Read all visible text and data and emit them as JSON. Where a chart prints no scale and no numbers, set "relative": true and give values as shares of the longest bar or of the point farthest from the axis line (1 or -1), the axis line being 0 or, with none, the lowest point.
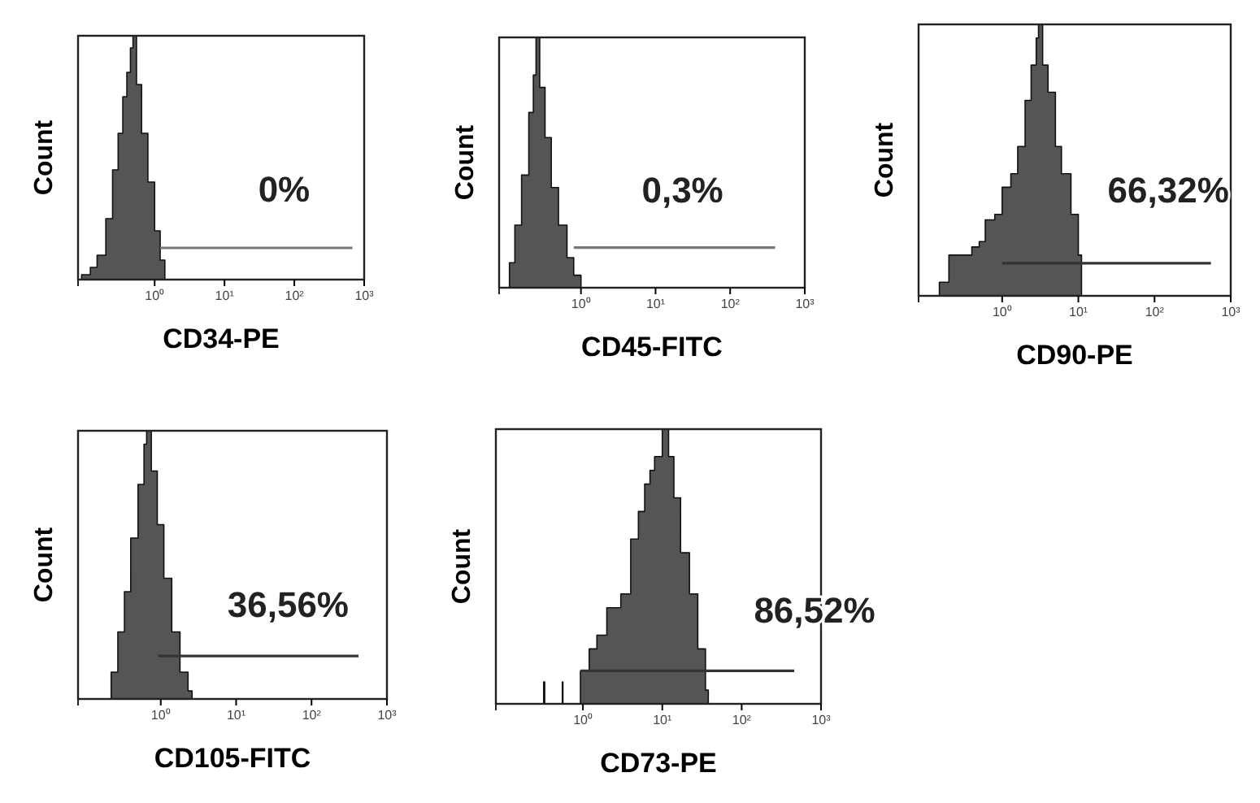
{
  "chart_data": [
    {
      "type": "area",
      "relative": true,
      "log": "x",
      "xlabel": "CD34-PE",
      "ylabel": "Count",
      "xlim": [
        0.08,
        1000
      ],
      "xticks": [
        {
          "value": 1,
          "label": "10⁰"
        },
        {
          "value": 10,
          "label": "10¹"
        },
        {
          "value": 100,
          "label": "10²"
        },
        {
          "value": 1000,
          "label": "10³"
        }
      ],
      "tick_labels": "x",
      "series": [
        {
          "color": "#555555",
          "x": [
            0.09,
            0.12,
            0.15,
            0.2,
            0.25,
            0.3,
            0.35,
            0.4,
            0.45,
            0.49,
            0.55,
            0.65,
            0.8,
            1.0,
            1.2,
            1.4
          ],
          "values": [
            0.02,
            0.05,
            0.1,
            0.25,
            0.45,
            0.6,
            0.75,
            0.85,
            0.95,
            1,
            0.8,
            0.6,
            0.4,
            0.2,
            0.08,
            0
          ]
        },
        {
          "type": "line",
          "color": "#777777",
          "x": [
            1.2,
            680
          ],
          "values": [
            0.13,
            0.13
          ]
        }
      ],
      "annotations": [
        "0%"
      ]
    },
    {
      "type": "area",
      "relative": true,
      "log": "x",
      "xlabel": "CD45-FITC",
      "ylabel": "Count",
      "xlim": [
        0.08,
        1000
      ],
      "xticks": [
        {
          "value": 1,
          "label": "10⁰"
        },
        {
          "value": 10,
          "label": "10¹"
        },
        {
          "value": 100,
          "label": "10²"
        },
        {
          "value": 1000,
          "label": "10³"
        }
      ],
      "tick_labels": "x",
      "series": [
        {
          "color": "#555555",
          "x": [
            0.1,
            0.11,
            0.13,
            0.16,
            0.2,
            0.23,
            0.25,
            0.28,
            0.33,
            0.4,
            0.5,
            0.65,
            0.8,
            1.0
          ],
          "values": [
            0,
            0.1,
            0.25,
            0.45,
            0.7,
            0.85,
            1,
            0.8,
            0.6,
            0.4,
            0.25,
            0.12,
            0.05,
            0.01
          ]
        },
        {
          "type": "line",
          "color": "#777777",
          "x": [
            0.8,
            400
          ],
          "values": [
            0.16,
            0.16
          ]
        }
      ],
      "annotations": [
        "0,3%"
      ]
    },
    {
      "type": "area",
      "relative": true,
      "log": "x",
      "xlabel": "CD90-PE",
      "ylabel": "Count",
      "xlim": [
        0.08,
        1000
      ],
      "xticks": [
        {
          "value": 1,
          "label": "10⁰"
        },
        {
          "value": 10,
          "label": "10¹"
        },
        {
          "value": 100,
          "label": "10²"
        },
        {
          "value": 1000,
          "label": "10³"
        }
      ],
      "tick_labels": "x",
      "series": [
        {
          "color": "#555555",
          "x": [
            0.15,
            0.2,
            0.3,
            0.4,
            0.5,
            0.6,
            0.8,
            1.0,
            1.3,
            1.6,
            2.0,
            2.4,
            2.8,
            3.0,
            3.4,
            4.0,
            5,
            6,
            8,
            10,
            11
          ],
          "values": [
            0.05,
            0.15,
            0.15,
            0.18,
            0.2,
            0.28,
            0.3,
            0.4,
            0.45,
            0.55,
            0.72,
            0.85,
            0.95,
            1,
            0.85,
            0.75,
            0.55,
            0.45,
            0.3,
            0.15,
            0.02
          ]
        },
        {
          "type": "line",
          "color": "#333333",
          "x": [
            1.0,
            550
          ],
          "values": [
            0.12,
            0.12
          ]
        }
      ],
      "annotations": [
        "66,32%"
      ]
    },
    {
      "type": "area",
      "relative": true,
      "log": "x",
      "xlabel": "CD105-FITC",
      "ylabel": "Count",
      "xlim": [
        0.08,
        1000
      ],
      "xticks": [
        {
          "value": 1,
          "label": "10⁰"
        },
        {
          "value": 10,
          "label": "10¹"
        },
        {
          "value": 100,
          "label": "10²"
        },
        {
          "value": 1000,
          "label": "10³"
        }
      ],
      "tick_labels": "x",
      "series": [
        {
          "color": "#555555",
          "x": [
            0.19,
            0.22,
            0.27,
            0.33,
            0.4,
            0.5,
            0.6,
            0.65,
            0.75,
            0.9,
            1.1,
            1.4,
            1.8,
            2.3,
            2.6
          ],
          "values": [
            0,
            0.1,
            0.25,
            0.4,
            0.6,
            0.8,
            0.95,
            1,
            0.85,
            0.65,
            0.45,
            0.25,
            0.1,
            0.03,
            0
          ]
        },
        {
          "type": "line",
          "color": "#333333",
          "x": [
            0.93,
            420
          ],
          "values": [
            0.16,
            0.16
          ]
        }
      ],
      "annotations": [
        "36,56%"
      ]
    },
    {
      "type": "area",
      "relative": true,
      "log": "x",
      "xlabel": "CD73-PE",
      "ylabel": "Count",
      "xlim": [
        0.08,
        1000
      ],
      "xticks": [
        {
          "value": 1,
          "label": "10⁰"
        },
        {
          "value": 10,
          "label": "10¹"
        },
        {
          "value": 100,
          "label": "10²"
        },
        {
          "value": 1000,
          "label": "10³"
        }
      ],
      "tick_labels": "x",
      "series": [
        {
          "color": "#555555",
          "x": [
            0.32,
            0.33,
            0.55,
            0.56,
            0.93,
            1.2,
            1.5,
            2,
            3,
            4,
            5,
            6,
            7,
            8,
            10,
            12,
            14,
            17,
            22,
            28,
            35,
            38
          ],
          "values": [
            0.08,
            0,
            0.08,
            0,
            0.12,
            0.2,
            0.25,
            0.35,
            0.4,
            0.6,
            0.7,
            0.8,
            0.85,
            0.9,
            1,
            0.9,
            0.75,
            0.55,
            0.4,
            0.2,
            0.05,
            0
          ]
        },
        {
          "type": "line",
          "color": "#333333",
          "x": [
            0.93,
            460
          ],
          "values": [
            0.12,
            0.12
          ]
        }
      ],
      "annotations": [
        "86,52%"
      ]
    }
  ]
}
